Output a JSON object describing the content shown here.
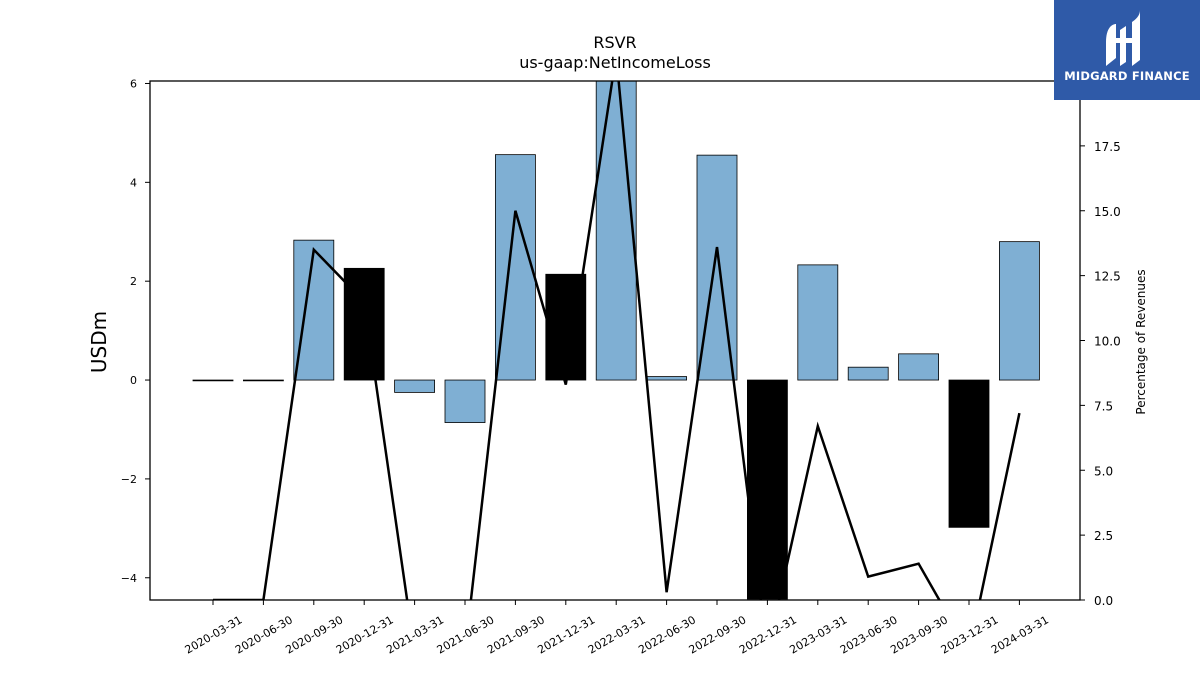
{
  "chart_data": {
    "type": "bar",
    "title": "RSVR",
    "subtitle": "us-gaap:NetIncomeLoss",
    "ylabel": "USDm",
    "y2label": "Percentage of Revenues",
    "categories": [
      "2020-03-31",
      "2020-06-30",
      "2020-09-30",
      "2020-12-31",
      "2021-03-31",
      "2021-06-30",
      "2021-09-30",
      "2021-12-31",
      "2022-03-31",
      "2022-06-30",
      "2022-09-30",
      "2022-12-31",
      "2023-03-31",
      "2023-06-30",
      "2023-09-30",
      "2023-12-31",
      "2024-03-31"
    ],
    "series": [
      {
        "type": "bar",
        "axis": "left",
        "values": [
          0.0,
          0.0,
          2.83,
          2.26,
          -0.25,
          -0.86,
          4.56,
          2.14,
          6.3,
          0.07,
          4.55,
          -4.43,
          2.33,
          0.26,
          0.53,
          -2.98,
          2.8
        ],
        "colors": [
          "#000000",
          "#000000",
          "#7fafd3",
          "#000000",
          "#7fafd3",
          "#7fafd3",
          "#7fafd3",
          "#000000",
          "#7fafd3",
          "#7fafd3",
          "#7fafd3",
          "#000000",
          "#7fafd3",
          "#7fafd3",
          "#7fafd3",
          "#000000",
          "#7fafd3"
        ]
      },
      {
        "type": "line",
        "axis": "right",
        "color": "#000000",
        "values": [
          0.0,
          0.0,
          13.5,
          11.5,
          -2.0,
          -2.0,
          15.0,
          8.3,
          21.0,
          0.3,
          13.6,
          -2.0,
          6.7,
          0.9,
          1.4,
          -2.0,
          7.2
        ]
      }
    ],
    "ylim": [
      -4.45,
      6.05
    ],
    "y2lim": [
      0.0,
      20.0
    ],
    "yticks": [
      "−4",
      "−2",
      "0",
      "2",
      "4",
      "6"
    ],
    "yticks_values": [
      -4,
      -2,
      0,
      2,
      4,
      6
    ],
    "y2ticks": [
      "0.0",
      "2.5",
      "5.0",
      "7.5",
      "10.0",
      "12.5",
      "15.0",
      "17.5"
    ],
    "y2ticks_values": [
      0.0,
      2.5,
      5.0,
      7.5,
      10.0,
      12.5,
      15.0,
      17.5
    ],
    "grid": false,
    "legend": "none"
  },
  "logo": {
    "name": "logo-icon",
    "text": "MIDGARD FINANCE",
    "background": "#2f5aa8"
  }
}
